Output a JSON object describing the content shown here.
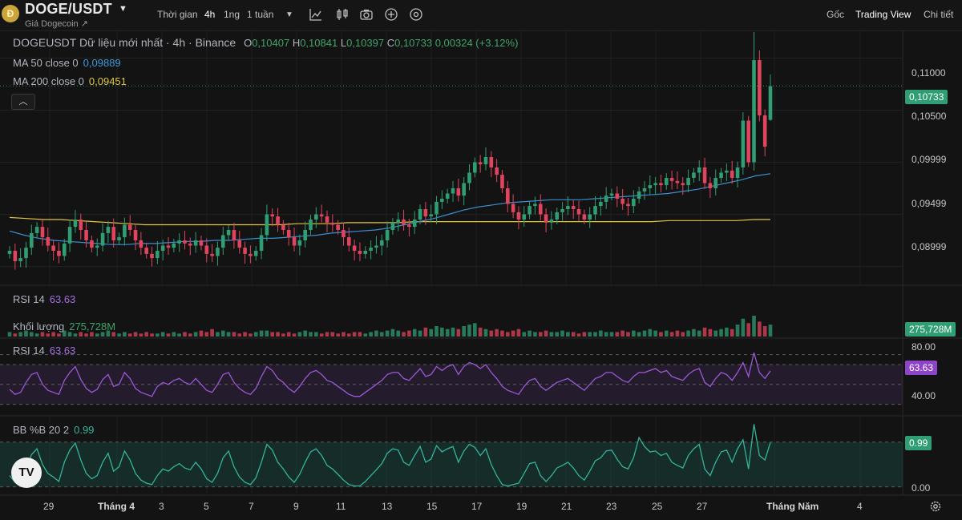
{
  "header": {
    "logo_text": "Ð",
    "symbol": "DOGE/USDT",
    "subtitle": "Giá Dogecoin ↗",
    "toolbar": {
      "time_label": "Thời gian",
      "interval_4h": "4h",
      "interval_1d": "1ng",
      "interval_1w": "1 tuần",
      "icons": [
        "chevron-down-icon",
        "line-chart-icon",
        "candles-icon",
        "camera-icon",
        "plus-circle-icon",
        "settings-circle-icon"
      ]
    },
    "tabs": {
      "original": "Gốc",
      "tradingview": "Trading View",
      "details": "Chi tiết"
    }
  },
  "legend": {
    "title": "DOGEUSDT Dữ liệu mới nhất · 4h · Binance",
    "o_key": "O",
    "o": "0,10407",
    "h_key": "H",
    "h": "0,10841",
    "l_key": "L",
    "l": "0,10397",
    "c_key": "C",
    "c": "0,10733",
    "change": "0,00324 (+3.12%)",
    "ma50_label": "MA 50 close 0",
    "ma50_value": "0,09889",
    "ma200_label": "MA 200 close 0",
    "ma200_value": "0,09451",
    "rsi_mini_label": "RSI 14",
    "rsi_mini_value": "63.63",
    "volume_label": "Khối lượng",
    "volume_value": "275,728M",
    "rsi_label": "RSI 14",
    "rsi_value": "63.63",
    "bb_label": "BB %B 20 2",
    "bb_value": "0.99"
  },
  "colors": {
    "up": "#2f9e73",
    "down": "#e0455d",
    "ma50": "#3a8fd0",
    "ma200": "#e2c542",
    "rsi": "#9b59d6",
    "bb": "#35b39a",
    "last_price": "#2f9e73"
  },
  "price_axis": {
    "ticks": [
      "0,11000",
      "0,10500",
      "0,09999",
      "0,09499",
      "0,08999"
    ],
    "last_price": "0,10733"
  },
  "volume_tag": "275,728M",
  "rsi_axis": {
    "ticks": [
      "80.00",
      "40.00"
    ],
    "tag": "63.63"
  },
  "bb_axis": {
    "ticks": [
      "0.00"
    ],
    "tag": "0.99"
  },
  "x_axis": {
    "labels": [
      "29",
      "Tháng 4",
      "3",
      "5",
      "7",
      "9",
      "11",
      "13",
      "15",
      "17",
      "19",
      "21",
      "23",
      "25",
      "27",
      "Tháng Năm",
      "4"
    ]
  },
  "tv_logo": "TV",
  "chart_data": {
    "type": "candlestick",
    "interval": "4h",
    "exchange": "Binance",
    "ylim": [
      0.0885,
      0.1125
    ],
    "ohlc_last": {
      "open": 0.10407,
      "high": 0.10841,
      "low": 0.10397,
      "close": 0.10733
    },
    "ma50_last": 0.09889,
    "ma200_last": 0.09451,
    "close": [
      0.0915,
      0.0905,
      0.0908,
      0.0918,
      0.0932,
      0.0938,
      0.0928,
      0.092,
      0.0915,
      0.091,
      0.0922,
      0.0938,
      0.0945,
      0.0935,
      0.0925,
      0.0918,
      0.092,
      0.0932,
      0.0938,
      0.0925,
      0.0928,
      0.094,
      0.0935,
      0.0925,
      0.0918,
      0.0912,
      0.0908,
      0.0915,
      0.092,
      0.0918,
      0.0922,
      0.0925,
      0.0922,
      0.092,
      0.0925,
      0.092,
      0.0912,
      0.091,
      0.0918,
      0.093,
      0.0935,
      0.0925,
      0.0918,
      0.0912,
      0.091,
      0.0915,
      0.093,
      0.095,
      0.0948,
      0.094,
      0.0935,
      0.0928,
      0.092,
      0.0925,
      0.0935,
      0.0945,
      0.095,
      0.0948,
      0.0942,
      0.094,
      0.0935,
      0.0928,
      0.092,
      0.0915,
      0.0912,
      0.0915,
      0.0918,
      0.092,
      0.0925,
      0.0935,
      0.0942,
      0.0945,
      0.094,
      0.0938,
      0.0945,
      0.0955,
      0.0948,
      0.095,
      0.0962,
      0.0965,
      0.097,
      0.0975,
      0.0968,
      0.098,
      0.099,
      0.1,
      0.0998,
      0.1005,
      0.0995,
      0.0988,
      0.0975,
      0.096,
      0.0952,
      0.0945,
      0.095,
      0.0958,
      0.096,
      0.095,
      0.0942,
      0.0945,
      0.0952,
      0.0955,
      0.0958,
      0.0955,
      0.095,
      0.0945,
      0.095,
      0.0958,
      0.0962,
      0.0968,
      0.097,
      0.0965,
      0.096,
      0.0958,
      0.0965,
      0.0972,
      0.0975,
      0.0978,
      0.098,
      0.0978,
      0.0985,
      0.0982,
      0.098,
      0.0978,
      0.0985,
      0.099,
      0.0995,
      0.098,
      0.0975,
      0.0985,
      0.099,
      0.0992,
      0.0985,
      0.0995,
      0.104,
      0.1,
      0.1098,
      0.1045,
      0.1015,
      0.1073
    ],
    "ma50": [
      0.0934,
      0.093,
      0.0927,
      0.0925,
      0.0924,
      0.0923,
      0.0922,
      0.0921,
      0.0921,
      0.0922,
      0.0922,
      0.0923,
      0.0924,
      0.0924,
      0.0925,
      0.0925,
      0.0926,
      0.0927,
      0.0927,
      0.0928,
      0.0929,
      0.093,
      0.0932,
      0.0933,
      0.0934,
      0.0935,
      0.0937,
      0.094,
      0.0943,
      0.0946,
      0.095,
      0.0954,
      0.0957,
      0.0959,
      0.0961,
      0.0962,
      0.0963,
      0.0964,
      0.0964,
      0.0964,
      0.0965,
      0.0966,
      0.0967,
      0.0968,
      0.0969,
      0.097,
      0.0972,
      0.0974,
      0.0977,
      0.098,
      0.0983,
      0.0987,
      0.0989
    ],
    "ma200": [
      0.0947,
      0.0946,
      0.0945,
      0.0945,
      0.0944,
      0.0943,
      0.0942,
      0.0941,
      0.094,
      0.094,
      0.094,
      0.094,
      0.094,
      0.094,
      0.094,
      0.094,
      0.094,
      0.0941,
      0.0941,
      0.0941,
      0.0942,
      0.0942,
      0.0942,
      0.0942,
      0.0943,
      0.0943,
      0.0943,
      0.0943,
      0.0943,
      0.0943,
      0.0943,
      0.0943,
      0.0943,
      0.0943,
      0.0943,
      0.0943,
      0.0943,
      0.0943,
      0.0943,
      0.0944,
      0.0944,
      0.0944,
      0.0944,
      0.0944,
      0.0945,
      0.0945
    ],
    "volume": [
      3,
      2,
      3,
      4,
      3,
      2,
      3,
      2,
      3,
      2,
      4,
      3,
      2,
      3,
      2,
      3,
      2,
      3,
      4,
      3,
      2,
      3,
      2,
      3,
      2,
      3,
      2,
      2,
      3,
      2,
      3,
      2,
      3,
      2,
      3,
      4,
      3,
      5,
      3,
      4,
      3,
      3,
      2,
      3,
      2,
      3,
      4,
      4,
      3,
      3,
      2,
      3,
      2,
      3,
      4,
      3,
      3,
      2,
      3,
      3,
      2,
      3,
      2,
      3,
      3,
      2,
      3,
      4,
      3,
      4,
      5,
      4,
      3,
      4,
      5,
      4,
      6,
      5,
      7,
      6,
      5,
      6,
      5,
      7,
      8,
      9,
      6,
      5,
      4,
      5,
      4,
      3,
      4,
      5,
      3,
      4,
      3,
      3,
      4,
      3,
      3,
      4,
      3,
      3,
      2,
      3,
      3,
      3,
      4,
      3,
      3,
      3,
      4,
      3,
      4,
      3,
      4,
      5,
      4,
      3,
      4,
      3,
      4,
      3,
      4,
      5,
      4,
      6,
      5,
      4,
      5,
      6,
      5,
      8,
      12,
      9,
      14,
      10,
      7,
      8
    ],
    "rsi": [
      45,
      40,
      42,
      52,
      60,
      62,
      50,
      44,
      42,
      40,
      54,
      62,
      68,
      55,
      46,
      42,
      45,
      55,
      60,
      48,
      50,
      62,
      56,
      46,
      42,
      40,
      38,
      48,
      52,
      50,
      54,
      56,
      52,
      50,
      56,
      50,
      44,
      42,
      50,
      60,
      62,
      52,
      46,
      42,
      40,
      46,
      58,
      68,
      64,
      56,
      52,
      46,
      42,
      48,
      56,
      62,
      64,
      60,
      54,
      52,
      48,
      44,
      40,
      38,
      38,
      42,
      46,
      50,
      54,
      60,
      62,
      62,
      56,
      54,
      60,
      66,
      58,
      60,
      68,
      64,
      68,
      70,
      60,
      68,
      72,
      70,
      66,
      70,
      62,
      56,
      48,
      44,
      42,
      40,
      48,
      54,
      56,
      48,
      44,
      48,
      52,
      54,
      56,
      52,
      48,
      44,
      50,
      56,
      58,
      62,
      62,
      58,
      54,
      52,
      58,
      62,
      62,
      64,
      66,
      62,
      64,
      58,
      56,
      54,
      60,
      64,
      66,
      52,
      48,
      56,
      62,
      60,
      54,
      62,
      72,
      58,
      82,
      62,
      56,
      63.63
    ],
    "rsi_levels": {
      "upper": 70,
      "middle": 50,
      "lower": 30,
      "ylim": [
        20,
        95
      ]
    },
    "bb_percent_b": [
      0.25,
      0.1,
      0.18,
      0.4,
      0.72,
      0.85,
      0.5,
      0.3,
      0.22,
      0.12,
      0.55,
      0.82,
      0.98,
      0.6,
      0.3,
      0.18,
      0.25,
      0.55,
      0.75,
      0.35,
      0.45,
      0.8,
      0.6,
      0.3,
      0.15,
      0.08,
      0.05,
      0.25,
      0.4,
      0.35,
      0.45,
      0.52,
      0.42,
      0.38,
      0.55,
      0.4,
      0.18,
      0.1,
      0.3,
      0.65,
      0.8,
      0.45,
      0.22,
      0.1,
      0.05,
      0.2,
      0.55,
      0.95,
      0.82,
      0.55,
      0.4,
      0.22,
      0.1,
      0.28,
      0.55,
      0.78,
      0.85,
      0.7,
      0.48,
      0.4,
      0.28,
      0.15,
      0.05,
      0.02,
      0.02,
      0.12,
      0.25,
      0.38,
      0.52,
      0.75,
      0.85,
      0.82,
      0.55,
      0.48,
      0.7,
      0.9,
      0.55,
      0.62,
      0.92,
      0.78,
      0.85,
      0.9,
      0.55,
      0.8,
      0.95,
      0.88,
      0.7,
      0.85,
      0.5,
      0.25,
      0.05,
      0.02,
      0.05,
      0.08,
      0.3,
      0.52,
      0.55,
      0.25,
      0.12,
      0.25,
      0.42,
      0.48,
      0.55,
      0.42,
      0.25,
      0.15,
      0.35,
      0.58,
      0.65,
      0.8,
      0.82,
      0.62,
      0.45,
      0.4,
      0.65,
      1.1,
      0.9,
      0.78,
      0.8,
      0.7,
      0.75,
      0.55,
      0.48,
      0.42,
      0.7,
      0.85,
      0.95,
      0.4,
      0.25,
      0.55,
      0.78,
      0.82,
      0.55,
      0.85,
      1.05,
      0.4,
      1.4,
      0.7,
      0.6,
      0.99
    ],
    "bb_levels": {
      "upper": 1.0,
      "lower": 0.0,
      "ylim": [
        -0.15,
        1.55
      ]
    }
  }
}
